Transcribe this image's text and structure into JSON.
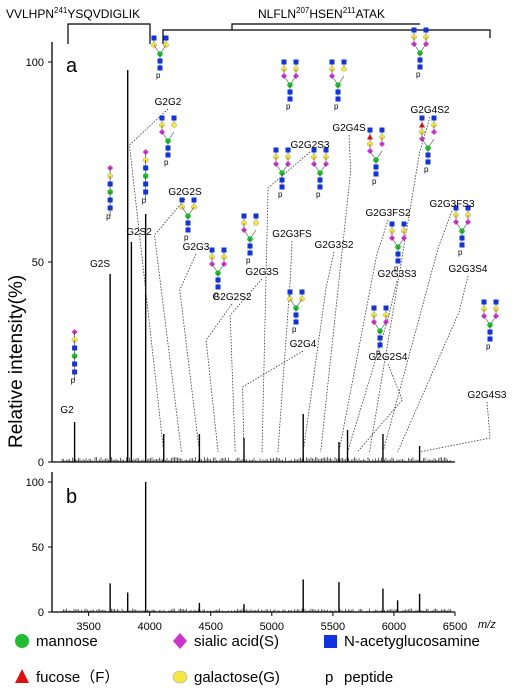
{
  "chart_data": [
    {
      "type": "bar",
      "panel": "a",
      "ylabel": "Relative intensity(%)",
      "ylim": [
        0,
        100
      ],
      "xlim": [
        3200,
        6500
      ],
      "yticks": [
        "0",
        "50",
        "100"
      ],
      "xunit": "m/z",
      "peptides": [
        {
          "name": "VVLHPN",
          "site": "241",
          "rest": "YSQVDIGLIK"
        },
        {
          "name": "NLFLN",
          "site": "207",
          "mid": "HSEN",
          "site2": "211",
          "rest": "ATAK"
        }
      ],
      "peaks": [
        {
          "x": 3385,
          "y": 10,
          "label": "G2"
        },
        {
          "x": 3676,
          "y": 47,
          "label": "G2S"
        },
        {
          "x": 3820,
          "y": 98,
          "label": ""
        },
        {
          "x": 3850,
          "y": 55,
          "label": ""
        },
        {
          "x": 3967,
          "y": 62,
          "label": "G2S2"
        },
        {
          "x": 4115,
          "y": 7,
          "label": ""
        },
        {
          "x": 4407,
          "y": 7,
          "label": ""
        },
        {
          "x": 4772,
          "y": 6,
          "label": ""
        },
        {
          "x": 5257,
          "y": 12,
          "label": ""
        },
        {
          "x": 5550,
          "y": 5,
          "label": ""
        },
        {
          "x": 5620,
          "y": 8,
          "label": ""
        },
        {
          "x": 5910,
          "y": 7,
          "label": ""
        },
        {
          "x": 6210,
          "y": 4,
          "label": ""
        }
      ],
      "annotations": [
        "G2G2",
        "G2G2S",
        "G2G3",
        "G2G2S2",
        "G2G3S",
        "G2G4",
        "G2G2S3",
        "G2G3FS",
        "G2G3S2",
        "G2G4S",
        "G2G3FS2",
        "G2G3S3",
        "G2G2S4",
        "G2G4S2",
        "G2G3FS3",
        "G2G3S4",
        "G2G4S3"
      ]
    },
    {
      "type": "bar",
      "panel": "b",
      "ylim": [
        0,
        100
      ],
      "xlim": [
        3200,
        6500
      ],
      "yticks": [
        "0",
        "50",
        "100"
      ],
      "xticks": [
        "3500",
        "4000",
        "4500",
        "5000",
        "5500",
        "6000",
        "6500"
      ],
      "xunit": "m/z",
      "peaks": [
        {
          "x": 3676,
          "y": 22
        },
        {
          "x": 3820,
          "y": 15
        },
        {
          "x": 3967,
          "y": 100
        },
        {
          "x": 4407,
          "y": 7
        },
        {
          "x": 4772,
          "y": 6
        },
        {
          "x": 5257,
          "y": 25
        },
        {
          "x": 5550,
          "y": 23
        },
        {
          "x": 5910,
          "y": 18
        },
        {
          "x": 6030,
          "y": 9
        },
        {
          "x": 6210,
          "y": 14
        }
      ]
    }
  ],
  "legend": [
    {
      "symbol": "circle",
      "color": "#22bb33",
      "text": "mannose"
    },
    {
      "symbol": "diamond",
      "color": "#cc33cc",
      "text": "sialic acid(S)"
    },
    {
      "symbol": "square",
      "color": "#1133dd",
      "text": "N-acetyglucosamine"
    },
    {
      "symbol": "triangle",
      "color": "#dd1111",
      "text": "fucose（F）"
    },
    {
      "symbol": "ellipse",
      "color": "#f5e642",
      "text": "galactose(G)"
    },
    {
      "symbol": "p",
      "color": "#000000",
      "text": "peptide"
    }
  ],
  "panel_labels": {
    "a": "a",
    "b": "b"
  }
}
